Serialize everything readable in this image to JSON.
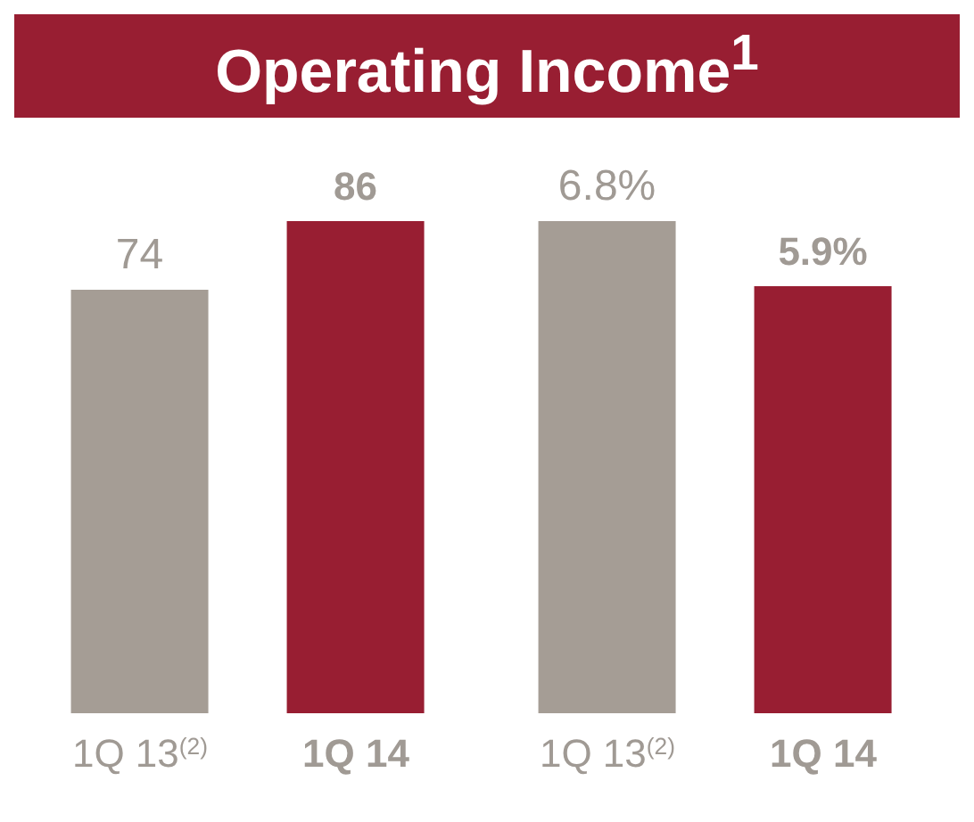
{
  "chart_data": [
    {
      "type": "bar",
      "title": "Operating Income$^{1}$",
      "categories": [
        "1Q 13$^{(2)}$",
        "1Q 14"
      ],
      "values": [
        74,
        86
      ],
      "colors": [
        "#a59d95",
        "#981e32"
      ],
      "value_labels": [
        "74",
        "86"
      ]
    },
    {
      "type": "bar",
      "categories": [
        "1Q 13$^{(2)}$",
        "1Q 14"
      ],
      "values": [
        6.8,
        5.9
      ],
      "colors": [
        "#a59d95",
        "#981e32"
      ],
      "value_labels": [
        "6.8%",
        "5.9%"
      ]
    }
  ]
}
